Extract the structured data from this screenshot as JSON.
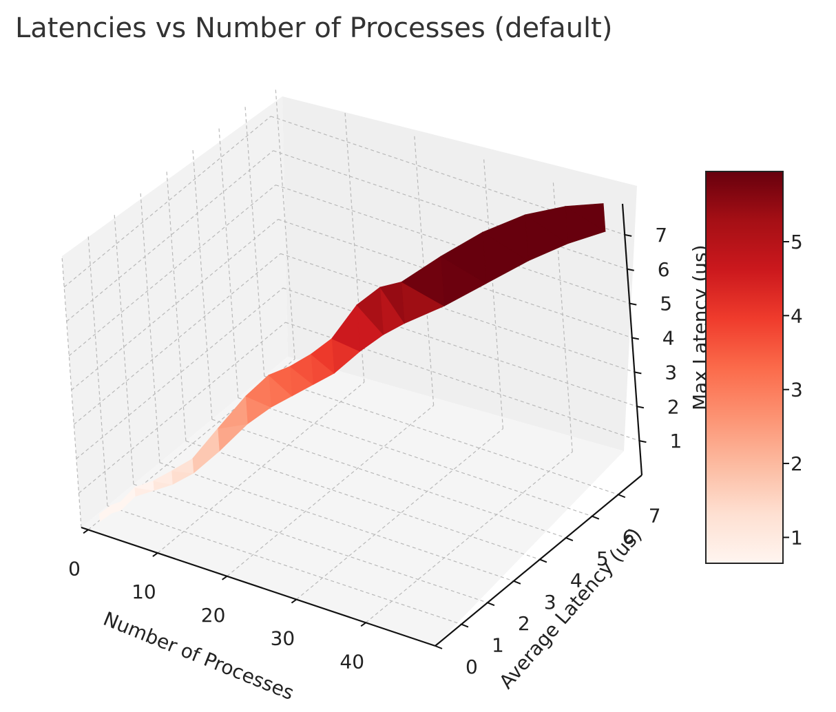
{
  "chart_data": {
    "type": "surface3d",
    "title": "Latencies vs Number of Processes (default)",
    "xlabel": "Number of Processes",
    "ylabel": "Average Latency (us)",
    "zlabel": "Max Latency (us)",
    "x_ticks": [
      "0",
      "10",
      "20",
      "30",
      "40"
    ],
    "y_ticks": [
      "0",
      "1",
      "2",
      "3",
      "4",
      "5",
      "6",
      "7"
    ],
    "z_ticks": [
      "1",
      "2",
      "3",
      "4",
      "5",
      "6",
      "7"
    ],
    "xlim": [
      -1,
      50
    ],
    "ylim": [
      0,
      7.9
    ],
    "zlim": [
      0,
      7.9
    ],
    "colormap": "Reds",
    "colorbar_ticks": [
      "1",
      "2",
      "3",
      "4",
      "5"
    ],
    "colorbar_range": [
      0.65,
      5.95
    ],
    "grid": true,
    "points": [
      {
        "n": 1,
        "avg": 0.2,
        "max": 0.4
      },
      {
        "n": 2,
        "avg": 0.4,
        "max": 0.6
      },
      {
        "n": 3,
        "avg": 0.5,
        "max": 0.7
      },
      {
        "n": 4,
        "avg": 0.8,
        "max": 1.0
      },
      {
        "n": 6,
        "avg": 1.0,
        "max": 1.2
      },
      {
        "n": 8,
        "avg": 1.2,
        "max": 1.5
      },
      {
        "n": 10,
        "avg": 1.5,
        "max": 1.8
      },
      {
        "n": 12,
        "avg": 2.0,
        "max": 2.5
      },
      {
        "n": 14,
        "avg": 2.6,
        "max": 3.2
      },
      {
        "n": 16,
        "avg": 3.0,
        "max": 3.7
      },
      {
        "n": 18,
        "avg": 3.3,
        "max": 3.9
      },
      {
        "n": 20,
        "avg": 3.6,
        "max": 4.2
      },
      {
        "n": 22,
        "avg": 3.9,
        "max": 4.6
      },
      {
        "n": 24,
        "avg": 4.4,
        "max": 5.4
      },
      {
        "n": 26,
        "avg": 4.8,
        "max": 5.8
      },
      {
        "n": 28,
        "avg": 5.1,
        "max": 5.9
      },
      {
        "n": 32,
        "avg": 5.6,
        "max": 6.6
      },
      {
        "n": 36,
        "avg": 6.2,
        "max": 7.2
      },
      {
        "n": 40,
        "avg": 6.8,
        "max": 7.6
      },
      {
        "n": 44,
        "avg": 7.3,
        "max": 7.8
      },
      {
        "n": 48,
        "avg": 7.7,
        "max": 7.9
      }
    ]
  }
}
